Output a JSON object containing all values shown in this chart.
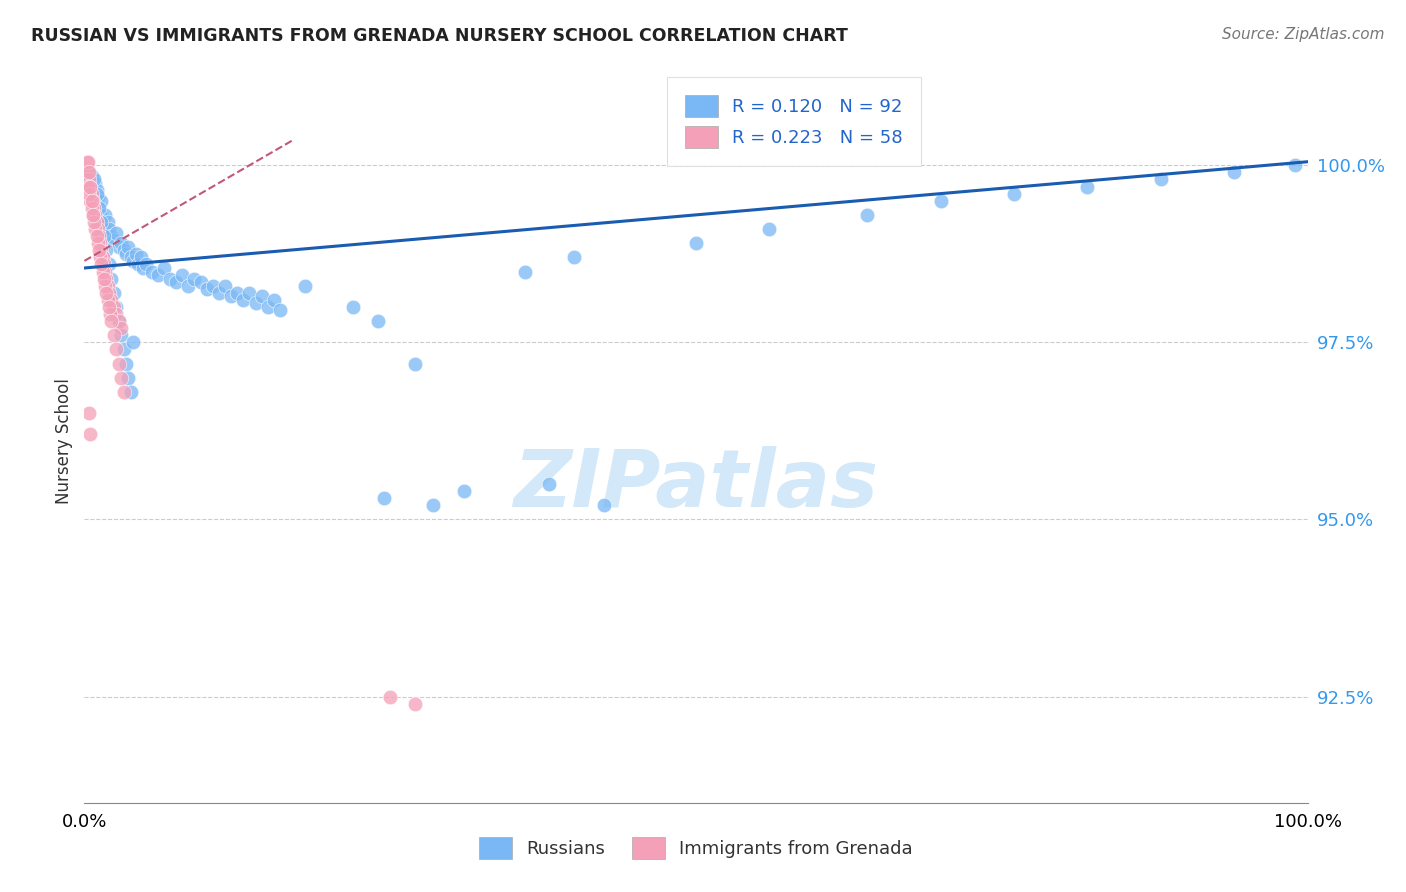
{
  "title": "RUSSIAN VS IMMIGRANTS FROM GRENADA NURSERY SCHOOL CORRELATION CHART",
  "source": "Source: ZipAtlas.com",
  "ylabel": "Nursery School",
  "watermark": "ZIPatlas",
  "legend": {
    "blue_label": "Russians",
    "pink_label": "Immigrants from Grenada",
    "blue_R": "R = 0.120",
    "blue_N": "N = 92",
    "pink_R": "R = 0.223",
    "pink_N": "N = 58"
  },
  "yticks": [
    92.5,
    95.0,
    97.5,
    100.0
  ],
  "ytick_labels": [
    "92.5%",
    "95.0%",
    "97.5%",
    "100.0%"
  ],
  "xrange": [
    0.0,
    1.0
  ],
  "yrange": [
    91.0,
    101.2
  ],
  "blue_color": "#7ab8f5",
  "pink_color": "#f4a0b8",
  "trendline_blue_color": "#1a5cb0",
  "trendline_pink_color": "#c05878",
  "blue_trendline_x": [
    0.0,
    1.0
  ],
  "blue_trendline_y": [
    98.55,
    100.05
  ],
  "pink_trendline_x": [
    0.0,
    0.17
  ],
  "pink_trendline_y": [
    98.65,
    100.35
  ],
  "blue_x": [
    0.003,
    0.004,
    0.005,
    0.006,
    0.007,
    0.008,
    0.009,
    0.01,
    0.011,
    0.012,
    0.013,
    0.014,
    0.015,
    0.016,
    0.017,
    0.018,
    0.019,
    0.02,
    0.022,
    0.024,
    0.026,
    0.028,
    0.03,
    0.032,
    0.034,
    0.036,
    0.038,
    0.04,
    0.042,
    0.044,
    0.046,
    0.048,
    0.05,
    0.055,
    0.06,
    0.065,
    0.07,
    0.075,
    0.08,
    0.085,
    0.09,
    0.095,
    0.1,
    0.105,
    0.11,
    0.115,
    0.12,
    0.125,
    0.13,
    0.135,
    0.14,
    0.145,
    0.15,
    0.155,
    0.16,
    0.008,
    0.01,
    0.012,
    0.014,
    0.016,
    0.018,
    0.02,
    0.022,
    0.024,
    0.026,
    0.028,
    0.03,
    0.032,
    0.034,
    0.036,
    0.038,
    0.04,
    0.18,
    0.22,
    0.24,
    0.27,
    0.36,
    0.4,
    0.5,
    0.56,
    0.64,
    0.7,
    0.76,
    0.82,
    0.88,
    0.94,
    0.99,
    0.245,
    0.285,
    0.31,
    0.38,
    0.425
  ],
  "blue_y": [
    99.9,
    99.8,
    99.7,
    99.85,
    99.6,
    99.5,
    99.75,
    99.65,
    99.55,
    99.4,
    99.3,
    99.5,
    99.2,
    99.1,
    99.3,
    99.0,
    99.2,
    99.1,
    99.0,
    98.95,
    99.05,
    98.85,
    98.9,
    98.8,
    98.75,
    98.85,
    98.7,
    98.65,
    98.75,
    98.6,
    98.7,
    98.55,
    98.6,
    98.5,
    98.45,
    98.55,
    98.4,
    98.35,
    98.45,
    98.3,
    98.4,
    98.35,
    98.25,
    98.3,
    98.2,
    98.3,
    98.15,
    98.2,
    98.1,
    98.2,
    98.05,
    98.15,
    98.0,
    98.1,
    97.95,
    99.8,
    99.6,
    99.4,
    99.2,
    99.0,
    98.8,
    98.6,
    98.4,
    98.2,
    98.0,
    97.8,
    97.6,
    97.4,
    97.2,
    97.0,
    96.8,
    97.5,
    98.3,
    98.0,
    97.8,
    97.2,
    98.5,
    98.7,
    98.9,
    99.1,
    99.3,
    99.5,
    99.6,
    99.7,
    99.8,
    99.9,
    100.0,
    95.3,
    95.2,
    95.4,
    95.5,
    95.2
  ],
  "pink_x": [
    0.002,
    0.003,
    0.004,
    0.005,
    0.006,
    0.007,
    0.008,
    0.009,
    0.01,
    0.011,
    0.012,
    0.013,
    0.014,
    0.015,
    0.016,
    0.017,
    0.018,
    0.019,
    0.02,
    0.022,
    0.024,
    0.026,
    0.028,
    0.03,
    0.003,
    0.005,
    0.007,
    0.009,
    0.011,
    0.013,
    0.015,
    0.017,
    0.019,
    0.021,
    0.004,
    0.006,
    0.008,
    0.01,
    0.012,
    0.014,
    0.016,
    0.018,
    0.02,
    0.022,
    0.024,
    0.026,
    0.028,
    0.03,
    0.032,
    0.003,
    0.004,
    0.005,
    0.006,
    0.007,
    0.004,
    0.005,
    0.25,
    0.27
  ],
  "pink_y": [
    100.05,
    99.9,
    99.8,
    99.7,
    99.6,
    99.5,
    99.4,
    99.3,
    99.2,
    99.1,
    99.0,
    98.9,
    98.8,
    98.7,
    98.6,
    98.5,
    98.4,
    98.3,
    98.2,
    98.1,
    98.0,
    97.9,
    97.8,
    97.7,
    99.7,
    99.5,
    99.3,
    99.1,
    98.9,
    98.7,
    98.5,
    98.3,
    98.1,
    97.9,
    99.6,
    99.4,
    99.2,
    99.0,
    98.8,
    98.6,
    98.4,
    98.2,
    98.0,
    97.8,
    97.6,
    97.4,
    97.2,
    97.0,
    96.8,
    100.05,
    99.9,
    99.7,
    99.5,
    99.3,
    96.5,
    96.2,
    92.5,
    92.4
  ]
}
